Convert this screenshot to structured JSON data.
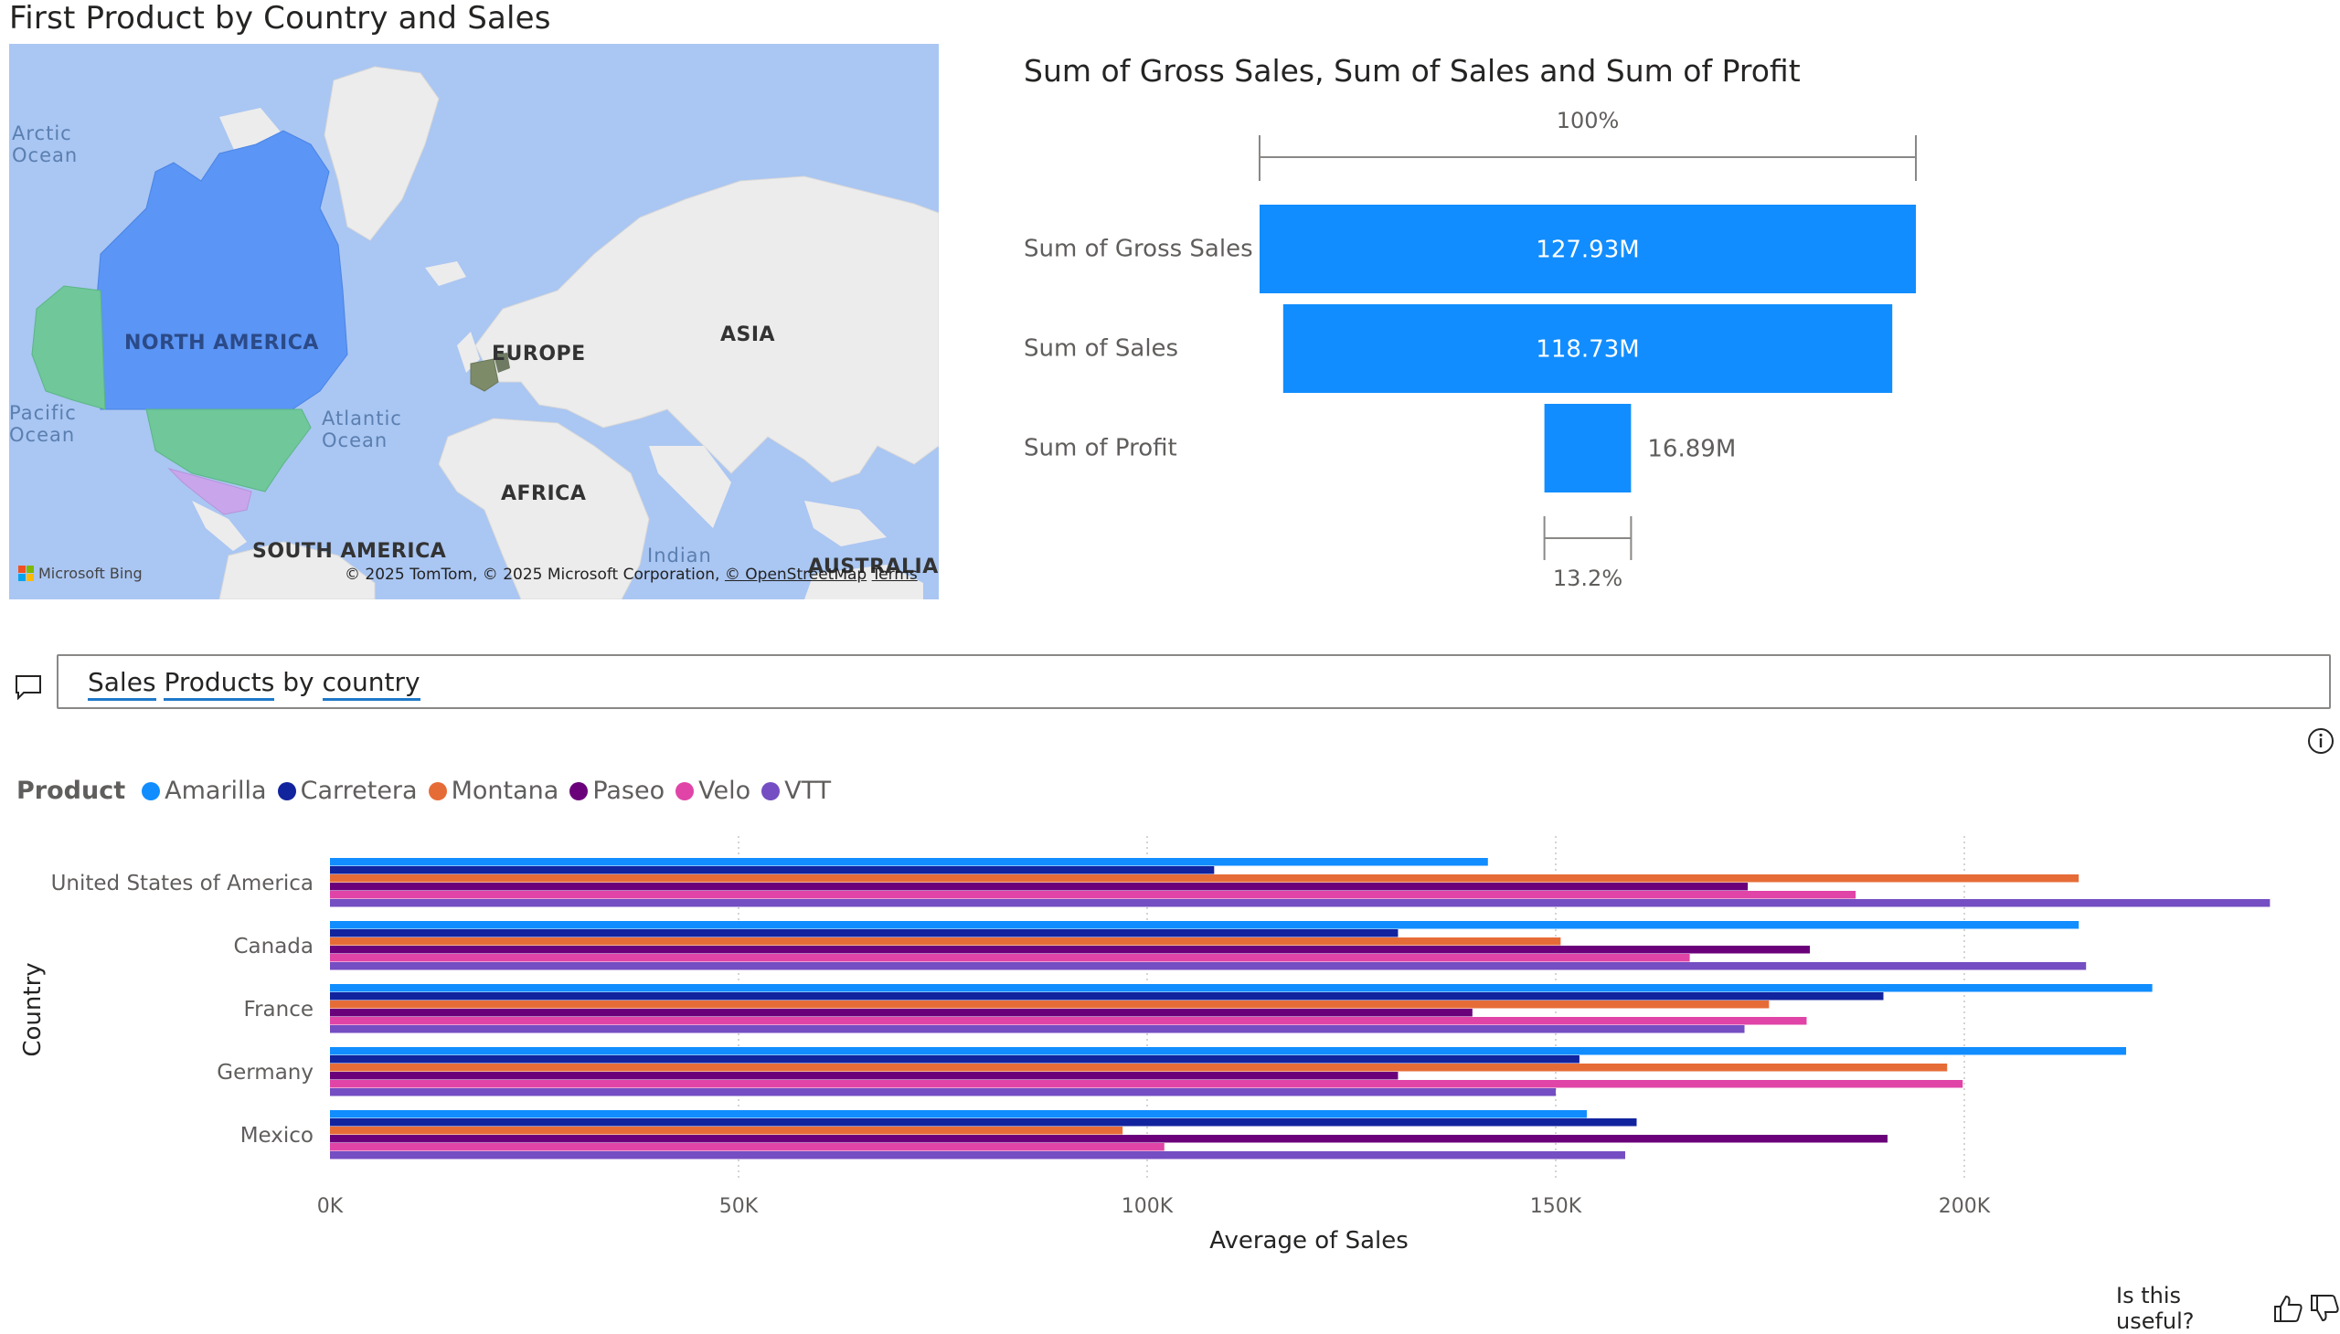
{
  "map": {
    "title": "First Product by Country and Sales",
    "labels": {
      "north_america": "NORTH AMERICA",
      "europe": "EUROPE",
      "asia": "ASIA",
      "africa": "AFRICA",
      "south_america": "SOUTH AMERICA",
      "australia": "AUSTRALIA"
    },
    "oceans": {
      "arctic": "Arctic\nOcean",
      "pacific": "Pacific\nOcean",
      "atlantic": "Atlantic\nOcean",
      "indian": "Indian"
    },
    "bing": "Microsoft Bing",
    "attribution": "© 2025 TomTom, © 2025 Microsoft Corporation,",
    "osm_link": "© OpenStreetMap",
    "terms_link": "Terms",
    "colors": {
      "canada": "#5b95f5",
      "usa": "#6fc79a",
      "mexico": "#c9a6ec",
      "france": "#7d8b68",
      "water": "#aac6f2",
      "land": "#ececec"
    }
  },
  "funnel": {
    "title": "Sum of Gross Sales, Sum of Sales and Sum of Profit",
    "top_pct": "100%",
    "bottom_pct": "13.2%",
    "color": "#118dff"
  },
  "qa": {
    "words": [
      "Sales",
      "Products",
      "by",
      "country"
    ],
    "underlined": [
      true,
      true,
      false,
      true
    ]
  },
  "legend": {
    "title": "Product"
  },
  "footer": {
    "useful": "Is this useful?"
  },
  "chart_data": [
    {
      "type": "funnel",
      "categories": [
        "Sum of Gross Sales",
        "Sum of Sales",
        "Sum of Profit"
      ],
      "values": [
        127.93,
        118.73,
        16.89
      ],
      "value_labels": [
        "127.93M",
        "118.73M",
        "16.89M"
      ],
      "title": "Sum of Gross Sales, Sum of Sales and Sum of Profit"
    },
    {
      "type": "bar",
      "orientation": "horizontal",
      "categories": [
        "United States of America",
        "Canada",
        "France",
        "Germany",
        "Mexico"
      ],
      "series": [
        {
          "name": "Amarilla",
          "color": "#118dff",
          "values": [
            141700,
            214000,
            223000,
            219800,
            153800
          ]
        },
        {
          "name": "Carretera",
          "color": "#12239e",
          "values": [
            108200,
            130700,
            190100,
            152900,
            159900
          ]
        },
        {
          "name": "Montana",
          "color": "#e66c37",
          "values": [
            214000,
            150600,
            176100,
            197900,
            97000
          ]
        },
        {
          "name": "Paseo",
          "color": "#6b007b",
          "values": [
            173500,
            181100,
            139800,
            130700,
            190600
          ]
        },
        {
          "name": "Velo",
          "color": "#e044a7",
          "values": [
            186700,
            166400,
            180700,
            199800,
            102100
          ]
        },
        {
          "name": "VTT",
          "color": "#744ec2",
          "values": [
            237400,
            214900,
            173100,
            150000,
            158500
          ]
        }
      ],
      "xlabel": "Average of Sales",
      "ylabel": "Country",
      "xlim": [
        0,
        240000
      ],
      "xticks": [
        0,
        50000,
        100000,
        150000,
        200000
      ],
      "xtick_labels": [
        "0K",
        "50K",
        "100K",
        "150K",
        "200K"
      ],
      "legend_title": "Product",
      "legend_position": "top-left",
      "grid": "vertical dotted"
    }
  ]
}
